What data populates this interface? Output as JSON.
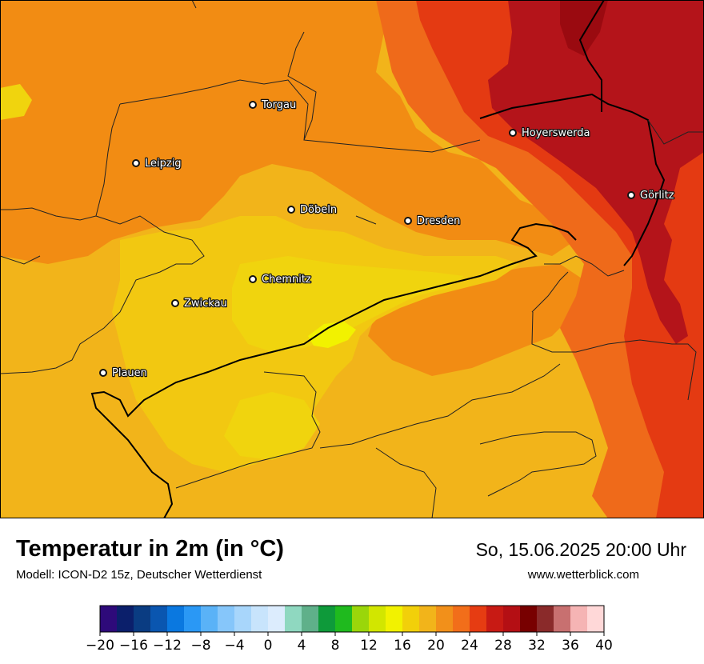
{
  "title": "Temperatur in 2m (in °C)",
  "model": "Modell: ICON-D2 15z, Deutscher Wetterdienst",
  "datetime": "So, 15.06.2025 20:00 Uhr",
  "website": "www.wetterblick.com",
  "cities": [
    {
      "name": "Torgau"
    },
    {
      "name": "Hoyerswerda"
    },
    {
      "name": "Leipzig"
    },
    {
      "name": "Görlitz"
    },
    {
      "name": "Döbeln"
    },
    {
      "name": "Dresden"
    },
    {
      "name": "Chemnitz"
    },
    {
      "name": "Zwickau"
    },
    {
      "name": "Plauen"
    }
  ],
  "colorbar": {
    "min": -20,
    "max": 40,
    "step": 2,
    "tick_labels": [
      "−20",
      "−16",
      "−12",
      "−8",
      "−4",
      "0",
      "4",
      "8",
      "12",
      "16",
      "20",
      "24",
      "28",
      "32",
      "36",
      "40"
    ],
    "colors": [
      "#2e0a7a",
      "#0b1f6b",
      "#0a3c82",
      "#0a56b0",
      "#0a78e0",
      "#2a98f5",
      "#5ab2f7",
      "#86c6fa",
      "#a8d6fb",
      "#c8e4fc",
      "#dcecfd",
      "#8fd8c0",
      "#5fb08a",
      "#0e9a3a",
      "#1fba1e",
      "#9ad60a",
      "#d2e600",
      "#f2f200",
      "#f2d00a",
      "#f2b41a",
      "#f2901a",
      "#f26e1a",
      "#e63c12",
      "#c81a14",
      "#b40f14",
      "#780000",
      "#8a2a2a",
      "#c87070",
      "#f5b4b4",
      "#ffd8d8"
    ]
  },
  "map_colors": {
    "yellow_warm": "#f2c811",
    "yellow_light": "#f0d40e",
    "yellow_bright": "#f2f200",
    "orange_light": "#f2b41a",
    "orange": "#f28c13",
    "orange_red": "#ef6a1a",
    "red": "#e43a12",
    "dark_red": "#b4141a",
    "darker_red": "#9a0a10"
  }
}
